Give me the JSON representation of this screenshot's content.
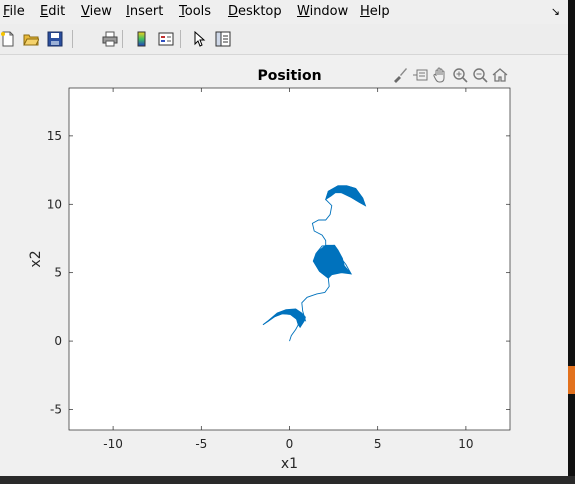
{
  "menu": {
    "items": [
      {
        "mnemonic": "F",
        "rest": "ile"
      },
      {
        "mnemonic": "E",
        "rest": "dit"
      },
      {
        "mnemonic": "V",
        "rest": "iew"
      },
      {
        "mnemonic": "I",
        "rest": "nsert"
      },
      {
        "mnemonic": "T",
        "rest": "ools"
      },
      {
        "mnemonic": "D",
        "rest": "esktop"
      },
      {
        "mnemonic": "W",
        "rest": "indow"
      },
      {
        "mnemonic": "H",
        "rest": "elp"
      }
    ],
    "extra_glyph": "↘"
  },
  "toolbar_icons": [
    "new-figure-icon",
    "open-file-icon",
    "save-icon",
    "print-icon",
    "colorbar-icon",
    "legend-icon",
    "pointer-icon",
    "property-inspector-icon"
  ],
  "axes_toolbar_icons": [
    "brush-icon",
    "data-tip-icon",
    "pan-icon",
    "zoom-in-icon",
    "zoom-out-icon",
    "home-icon"
  ],
  "colors": {
    "series": "#0072bd",
    "axis": "#262626",
    "plot_bg": "#ffffff",
    "figure_bg": "#f0f0f0"
  },
  "chart_data": {
    "type": "line",
    "title": "Position",
    "xlabel": "x1",
    "ylabel": "x2",
    "xlim": [
      -12.5,
      12.5
    ],
    "ylim": [
      -6.5,
      18.5
    ],
    "xticks": [
      -10,
      -5,
      0,
      5,
      10
    ],
    "yticks": [
      -5,
      0,
      5,
      10,
      15
    ],
    "grid": false,
    "series": [
      {
        "color": "#0072bd",
        "path": [
          [
            0,
            0
          ],
          [
            0.1,
            0.4
          ],
          [
            0.35,
            0.85
          ],
          [
            0.5,
            1.2
          ],
          [
            0.4,
            1.6
          ],
          [
            0.05,
            1.95
          ],
          [
            -0.4,
            2.0
          ],
          [
            -0.9,
            1.75
          ],
          [
            -1.5,
            1.2
          ],
          [
            -1.2,
            1.45
          ],
          [
            -0.6,
            2.0
          ],
          [
            -0.2,
            2.25
          ],
          [
            0.1,
            2.3
          ],
          [
            0.3,
            2.2
          ],
          [
            0.5,
            2.0
          ],
          [
            0.7,
            1.7
          ],
          [
            0.9,
            1.5
          ],
          [
            0.75,
            2.2
          ],
          [
            0.7,
            2.8
          ],
          [
            1.0,
            3.2
          ],
          [
            1.55,
            3.45
          ],
          [
            2.0,
            3.55
          ],
          [
            2.25,
            4.0
          ],
          [
            2.2,
            4.6
          ],
          [
            1.7,
            5.1
          ],
          [
            1.35,
            5.85
          ],
          [
            1.5,
            6.4
          ],
          [
            1.85,
            6.95
          ],
          [
            2.55,
            7.0
          ],
          [
            2.75,
            6.6
          ],
          [
            3.0,
            6.0
          ],
          [
            3.1,
            5.5
          ],
          [
            3.5,
            4.9
          ],
          [
            3.2,
            5.6
          ],
          [
            2.75,
            6.35
          ],
          [
            2.05,
            7.0
          ],
          [
            2.05,
            7.35
          ],
          [
            1.85,
            7.75
          ],
          [
            1.4,
            8.05
          ],
          [
            1.3,
            8.6
          ],
          [
            1.65,
            8.85
          ],
          [
            2.05,
            8.85
          ],
          [
            2.3,
            9.25
          ],
          [
            2.4,
            9.9
          ],
          [
            2.05,
            10.35
          ],
          [
            2.2,
            10.95
          ],
          [
            2.75,
            11.35
          ],
          [
            3.25,
            11.35
          ],
          [
            3.75,
            11.15
          ],
          [
            4.15,
            10.45
          ],
          [
            4.3,
            9.9
          ],
          [
            3.95,
            10.15
          ],
          [
            3.5,
            10.5
          ],
          [
            2.95,
            10.85
          ],
          [
            2.6,
            10.9
          ]
        ]
      }
    ],
    "bands": [
      [
        [
          -1.5,
          1.2
        ],
        [
          -0.9,
          1.75
        ],
        [
          -0.4,
          2.0
        ],
        [
          0.05,
          1.95
        ],
        [
          0.4,
          1.6
        ],
        [
          0.5,
          1.2
        ],
        [
          0.6,
          1.0
        ],
        [
          0.85,
          1.5
        ],
        [
          0.9,
          1.75
        ],
        [
          0.7,
          2.05
        ],
        [
          0.35,
          2.35
        ],
        [
          -0.2,
          2.3
        ],
        [
          -0.7,
          2.05
        ],
        [
          -1.2,
          1.5
        ]
      ],
      [
        [
          1.35,
          5.85
        ],
        [
          1.6,
          6.55
        ],
        [
          2.05,
          7.0
        ],
        [
          2.55,
          7.0
        ],
        [
          2.75,
          6.65
        ],
        [
          3.0,
          6.05
        ],
        [
          3.1,
          5.5
        ],
        [
          3.5,
          4.9
        ],
        [
          2.95,
          5.0
        ],
        [
          2.4,
          4.85
        ],
        [
          2.2,
          4.6
        ],
        [
          1.7,
          5.1
        ]
      ],
      [
        [
          2.05,
          10.35
        ],
        [
          2.2,
          10.95
        ],
        [
          2.75,
          11.35
        ],
        [
          3.25,
          11.35
        ],
        [
          3.75,
          11.15
        ],
        [
          4.15,
          10.45
        ],
        [
          4.3,
          9.9
        ],
        [
          3.95,
          10.15
        ],
        [
          3.5,
          10.5
        ],
        [
          2.95,
          10.85
        ],
        [
          2.6,
          10.85
        ],
        [
          2.35,
          10.6
        ]
      ]
    ]
  }
}
